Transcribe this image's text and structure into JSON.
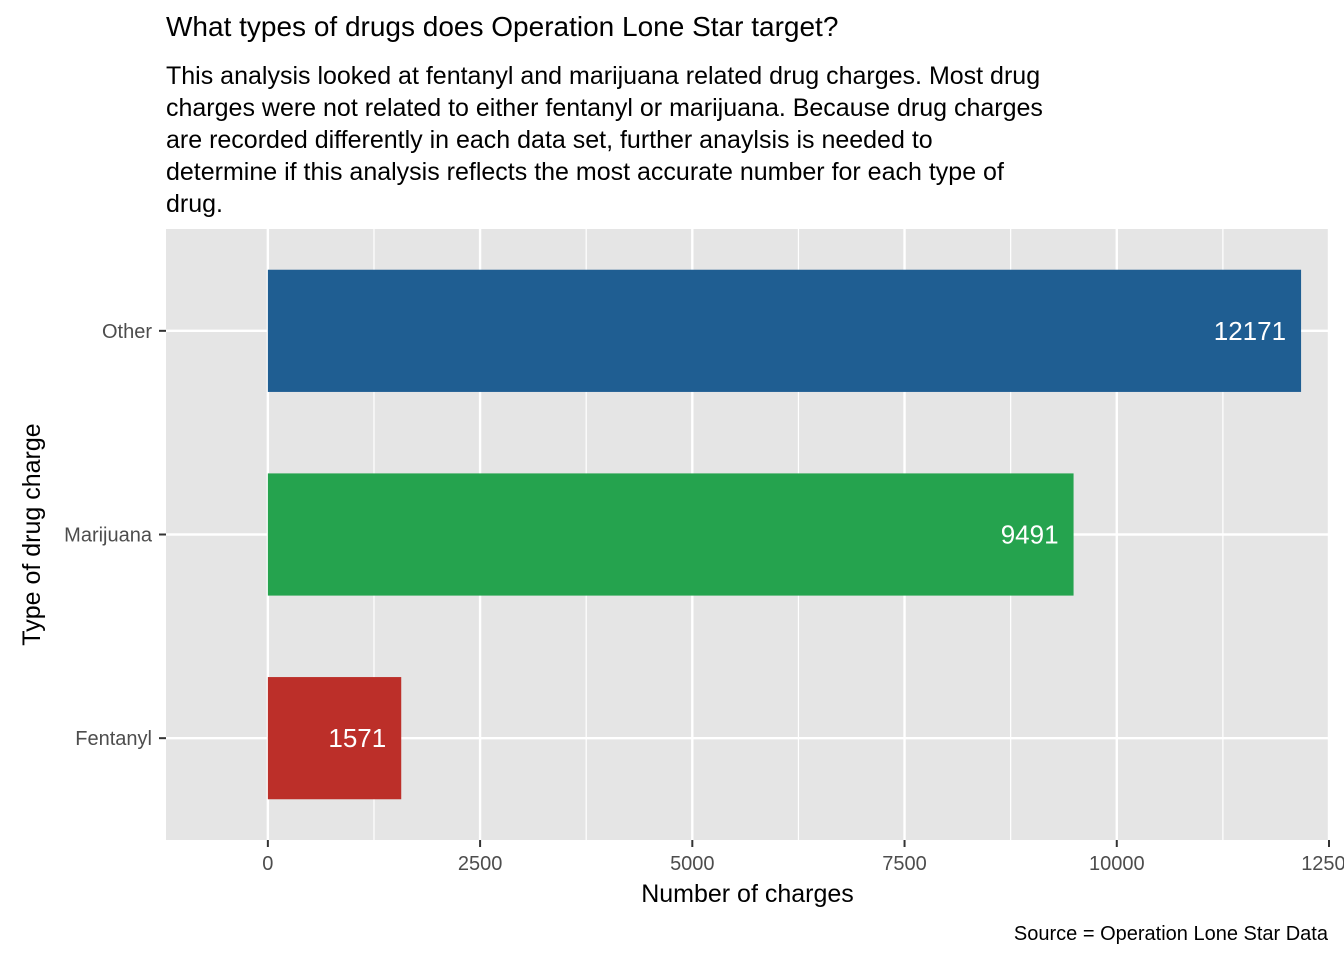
{
  "chart_data": {
    "type": "bar",
    "orientation": "horizontal",
    "title": "What types of drugs does Operation Lone Star target?",
    "subtitle_lines": [
      "This analysis looked at fentanyl and marijuana related drug charges. Most drug",
      "charges were not related to either fentanyl or marijuana. Because drug charges",
      "are recorded differently in each data set, further anaylsis is needed to",
      "determine if this analysis reflects the most accurate number for each type of",
      "drug."
    ],
    "categories": [
      "Fentanyl",
      "Marijuana",
      "Other"
    ],
    "values": [
      1571,
      9491,
      12171
    ],
    "value_labels": [
      "1571",
      "9491",
      "12171"
    ],
    "colors": [
      "#bc2f29",
      "#25a34e",
      "#1f5e92"
    ],
    "xlabel": "Number of charges",
    "ylabel": "Type of drug charge",
    "xlim": [
      -1200,
      12500
    ],
    "x_ticks": [
      0,
      2500,
      5000,
      7500,
      10000,
      12500
    ],
    "x_tick_labels": [
      "0",
      "2500",
      "5000",
      "7500",
      "10000",
      "12500"
    ],
    "grid": true,
    "legend": "none",
    "caption": "Source = Operation Lone Star Data",
    "panel_background": "#e5e5e5"
  }
}
